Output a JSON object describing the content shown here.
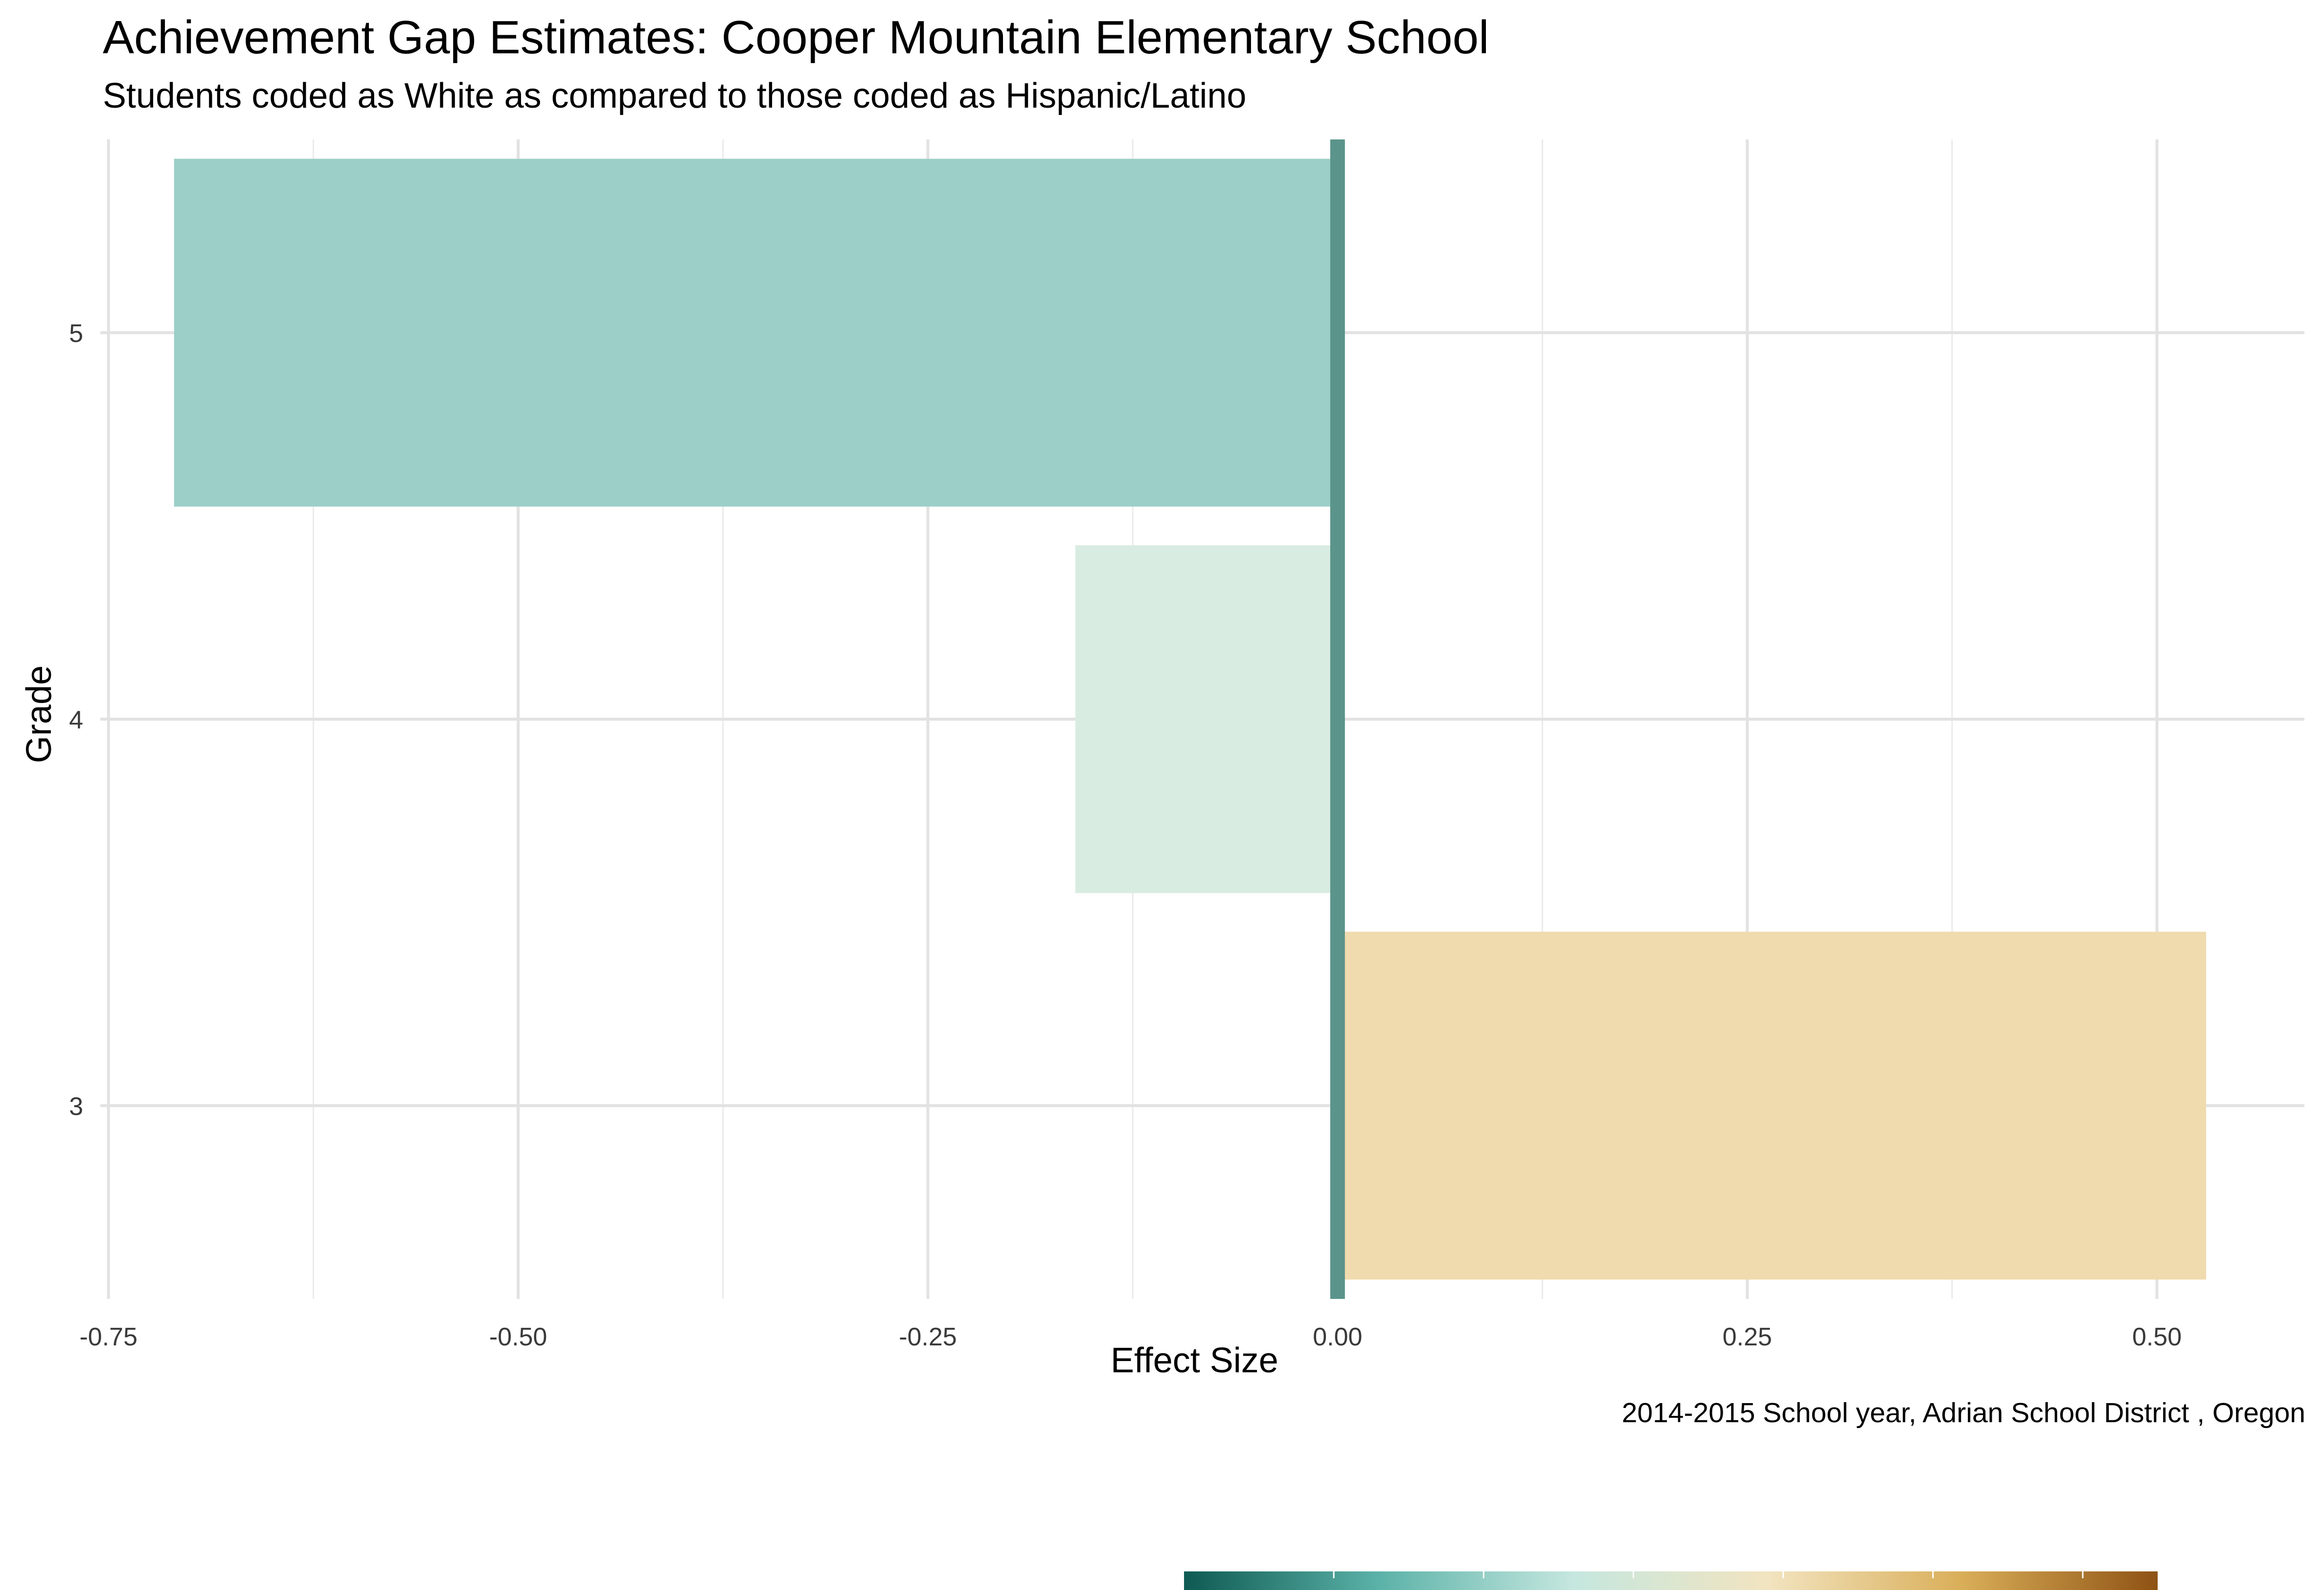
{
  "chart_data": {
    "type": "bar",
    "orientation": "horizontal",
    "title": "Achievement Gap Estimates: Cooper Mountain Elementary School",
    "subtitle": "Students coded as White as compared to those coded as Hispanic/Latino",
    "caption": "2014-2015 School year,  Adrian School District , Oregon",
    "xlabel": "Effect Size",
    "ylabel": "Grade",
    "categories": [
      "3",
      "4",
      "5"
    ],
    "values": [
      0.53,
      -0.16,
      -0.71
    ],
    "bar_colors": [
      "#EFDBAE",
      "#D9ECE1",
      "#9CCFC8"
    ],
    "xlim": [
      -0.755,
      0.59
    ],
    "x_ticks": [
      -0.75,
      -0.5,
      -0.25,
      0.0,
      0.25,
      0.5
    ],
    "x_tick_labels": [
      "-0.75",
      "-0.50",
      "-0.25",
      "0.00",
      "0.25",
      "0.50"
    ],
    "x_minor_ticks": [
      -0.625,
      -0.375,
      -0.125,
      0.125,
      0.375
    ],
    "reference_line": {
      "x": 0,
      "color": "#5B948A"
    },
    "grid": true,
    "legend": {
      "position": "bottom",
      "type": "colorbar",
      "colors": [
        "#0E5A52",
        "#5BB2A8",
        "#C5E7DF",
        "#F2E4C0",
        "#D9AE58",
        "#8E5214"
      ]
    }
  }
}
